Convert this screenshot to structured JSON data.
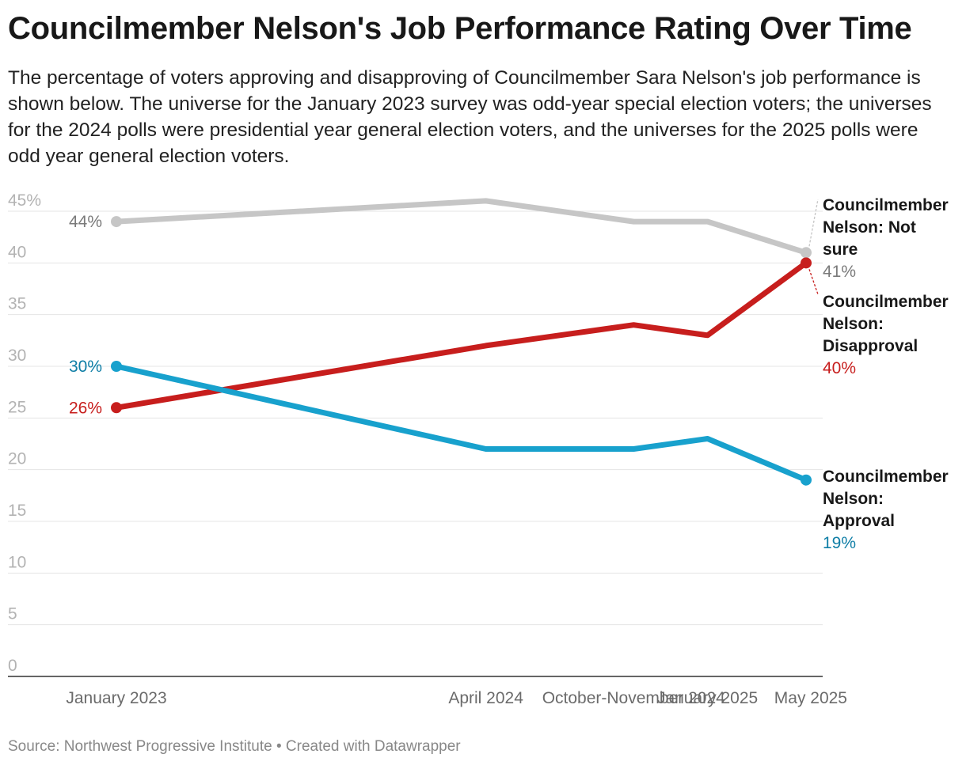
{
  "header": {
    "title": "Councilmember Nelson's Job Performance Rating Over Time",
    "subtitle": "The percentage of voters approving and disapproving of Councilmember Sara Nelson's job performance is shown below. The universe for the January 2023 survey was odd-year special election voters; the universes for the 2024 polls were presidential year general election voters, and the universes for the 2025 polls were odd year general election voters."
  },
  "footer": {
    "text": "Source: Northwest Progressive Institute • Created with Datawrapper"
  },
  "chart_data": {
    "type": "line",
    "x": [
      "January 2023",
      "April 2024",
      "October-November 2024",
      "January 2025",
      "May 2025"
    ],
    "x_dates": [
      "2023-01",
      "2024-04",
      "2024-10",
      "2025-01",
      "2025-05"
    ],
    "ylim": [
      0,
      45
    ],
    "yticks": [
      0,
      5,
      10,
      15,
      20,
      25,
      30,
      35,
      40,
      45
    ],
    "ytick_labels": [
      "0",
      "5",
      "10",
      "15",
      "20",
      "25",
      "30",
      "35",
      "40",
      "45%"
    ],
    "grid": true,
    "series": [
      {
        "name": "Councilmember Nelson: Not sure",
        "color": "#c6c6c6",
        "label_color": "#7a7a7a",
        "values": [
          44,
          46,
          44,
          44,
          41
        ],
        "start_label": "44%",
        "end_label": "41%"
      },
      {
        "name": "Councilmember Nelson: Disapproval",
        "color": "#c71e1d",
        "label_color": "#c71e1d",
        "values": [
          26,
          32,
          34,
          33,
          40
        ],
        "start_label": "26%",
        "end_label": "40%"
      },
      {
        "name": "Councilmember Nelson: Approval",
        "color": "#18a1cd",
        "label_color": "#0f7ea6",
        "values": [
          30,
          22,
          22,
          23,
          19
        ],
        "start_label": "30%",
        "end_label": "19%"
      }
    ]
  }
}
